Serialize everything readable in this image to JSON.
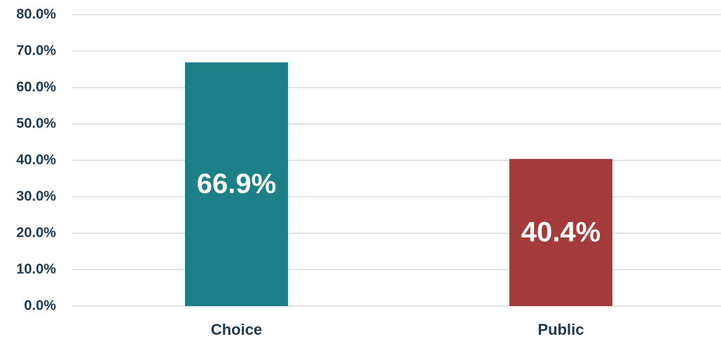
{
  "chart_data": {
    "type": "bar",
    "categories": [
      "Choice",
      "Public"
    ],
    "values": [
      66.9,
      40.4
    ],
    "value_labels": [
      "66.9%",
      "40.4%"
    ],
    "colors": [
      "#1d7f87",
      "#a33b3b"
    ],
    "ylim": [
      0,
      80
    ],
    "yticks": [
      {
        "value": 0,
        "label": "0.0%"
      },
      {
        "value": 10,
        "label": "10.0%"
      },
      {
        "value": 20,
        "label": "20.0%"
      },
      {
        "value": 30,
        "label": "30.0%"
      },
      {
        "value": 40,
        "label": "40.0%"
      },
      {
        "value": 50,
        "label": "50.0%"
      },
      {
        "value": 60,
        "label": "60.0%"
      },
      {
        "value": 70,
        "label": "70.0%"
      },
      {
        "value": 80,
        "label": "80.0%"
      }
    ],
    "grid": true
  }
}
